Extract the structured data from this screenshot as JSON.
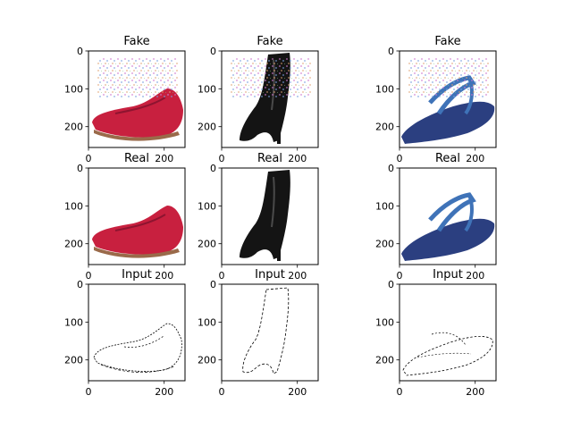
{
  "figure": {
    "rows": [
      {
        "title": "Fake",
        "kind": "fake"
      },
      {
        "title": "Real",
        "kind": "real"
      },
      {
        "title": "Input",
        "kind": "input"
      }
    ],
    "columns": [
      {
        "subject": "red loafer"
      },
      {
        "subject": "black high-heel ankle boot"
      },
      {
        "subject": "navy flip-flop"
      }
    ],
    "axes": {
      "x_ticks": [
        "0",
        "200"
      ],
      "y_ticks": [
        "0",
        "100",
        "200"
      ],
      "x_tick_values": [
        0,
        200
      ],
      "y_tick_values": [
        0,
        100,
        200
      ],
      "x_range": [
        0,
        255
      ],
      "y_range": [
        0,
        255
      ]
    },
    "colors": {
      "loafer": "#c8203f",
      "loafer_dark": "#8e1430",
      "loafer_sole": "#9a6a4a",
      "boot": "#141414",
      "boot_hi": "#4a4a4a",
      "flipflop": "#2b3f80",
      "flipflop_strap": "#3f73b8",
      "edge": "#000000"
    }
  }
}
